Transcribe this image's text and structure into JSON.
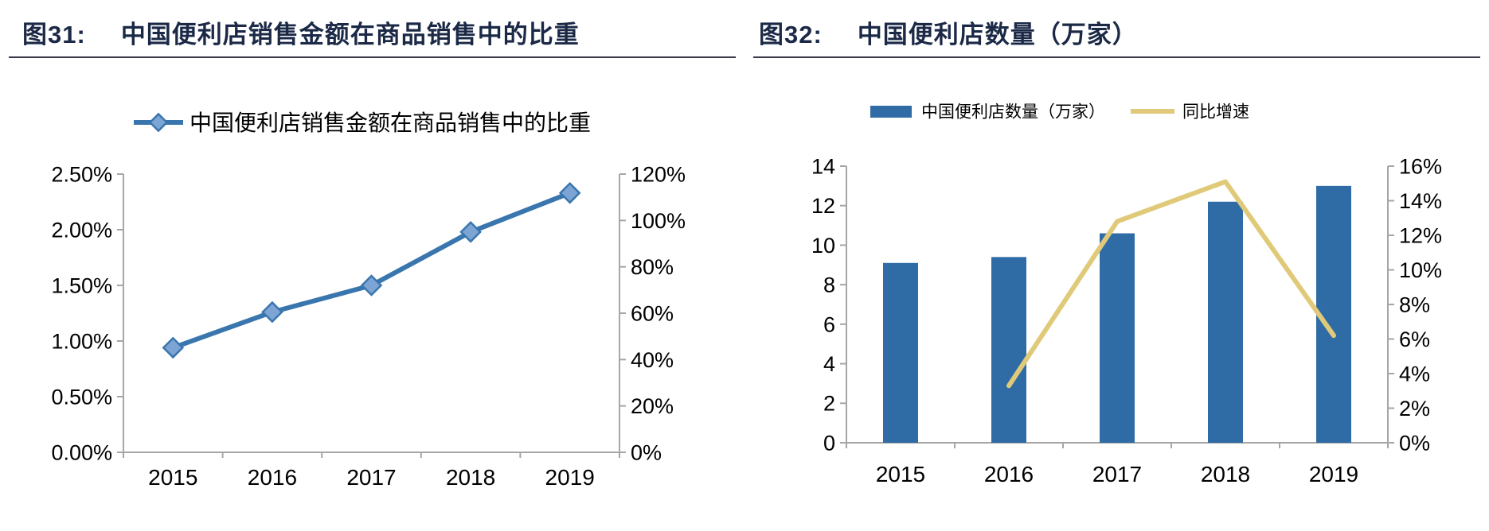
{
  "figures": [
    {
      "label": "图31:",
      "title": "中国便利店销售金额在商品销售中的比重"
    },
    {
      "label": "图32:",
      "title": "中国便利店数量（万家）"
    }
  ],
  "colors": {
    "title_navy": "#1b2947",
    "rule_dark": "#3a3a48",
    "axis_gray": "#a6a6a6",
    "tick_text": "#000000",
    "series_blue": "#3a76ae",
    "marker_fill": "#7ca4d4",
    "bar_blue": "#2f6ca5",
    "trend_yellow": "#e0ca7a"
  },
  "chart_data": [
    {
      "type": "line",
      "title": "中国便利店销售金额在商品销售中的比重",
      "categories": [
        "2015",
        "2016",
        "2017",
        "2018",
        "2019"
      ],
      "series": [
        {
          "name": "中国便利店销售金额在商品销售中的比重",
          "type": "line",
          "axis": "left",
          "marker": "diamond",
          "color": "#3a76ae",
          "values": [
            0.94,
            1.26,
            1.5,
            1.98,
            2.33
          ],
          "unit": "%"
        }
      ],
      "left_axis": {
        "min": 0,
        "max": 2.5,
        "tick_labels": [
          "0.00%",
          "0.50%",
          "1.00%",
          "1.50%",
          "2.00%",
          "2.50%"
        ]
      },
      "right_axis": {
        "min": 0,
        "max": 120,
        "tick_labels": [
          "0%",
          "20%",
          "40%",
          "60%",
          "80%",
          "100%",
          "120%"
        ]
      },
      "legend_position": "top",
      "grid": false
    },
    {
      "type": "bar+line",
      "title": "中国便利店数量（万家）",
      "categories": [
        "2015",
        "2016",
        "2017",
        "2018",
        "2019"
      ],
      "series": [
        {
          "name": "中国便利店数量（万家）",
          "type": "bar",
          "axis": "left",
          "color": "#2f6ca5",
          "values": [
            9.1,
            9.4,
            10.6,
            12.2,
            13.0
          ],
          "unit": "万家"
        },
        {
          "name": "同比增速",
          "type": "line",
          "axis": "right",
          "marker": "none",
          "color": "#e0ca7a",
          "values": [
            null,
            3.3,
            12.8,
            15.1,
            6.2
          ],
          "unit": "%"
        }
      ],
      "left_axis": {
        "min": 0,
        "max": 14,
        "tick_labels": [
          "0",
          "2",
          "4",
          "6",
          "8",
          "10",
          "12",
          "14"
        ]
      },
      "right_axis": {
        "min": 0,
        "max": 16,
        "tick_labels": [
          "0%",
          "2%",
          "4%",
          "6%",
          "8%",
          "10%",
          "12%",
          "14%",
          "16%"
        ]
      },
      "legend_position": "top",
      "grid": false
    }
  ]
}
